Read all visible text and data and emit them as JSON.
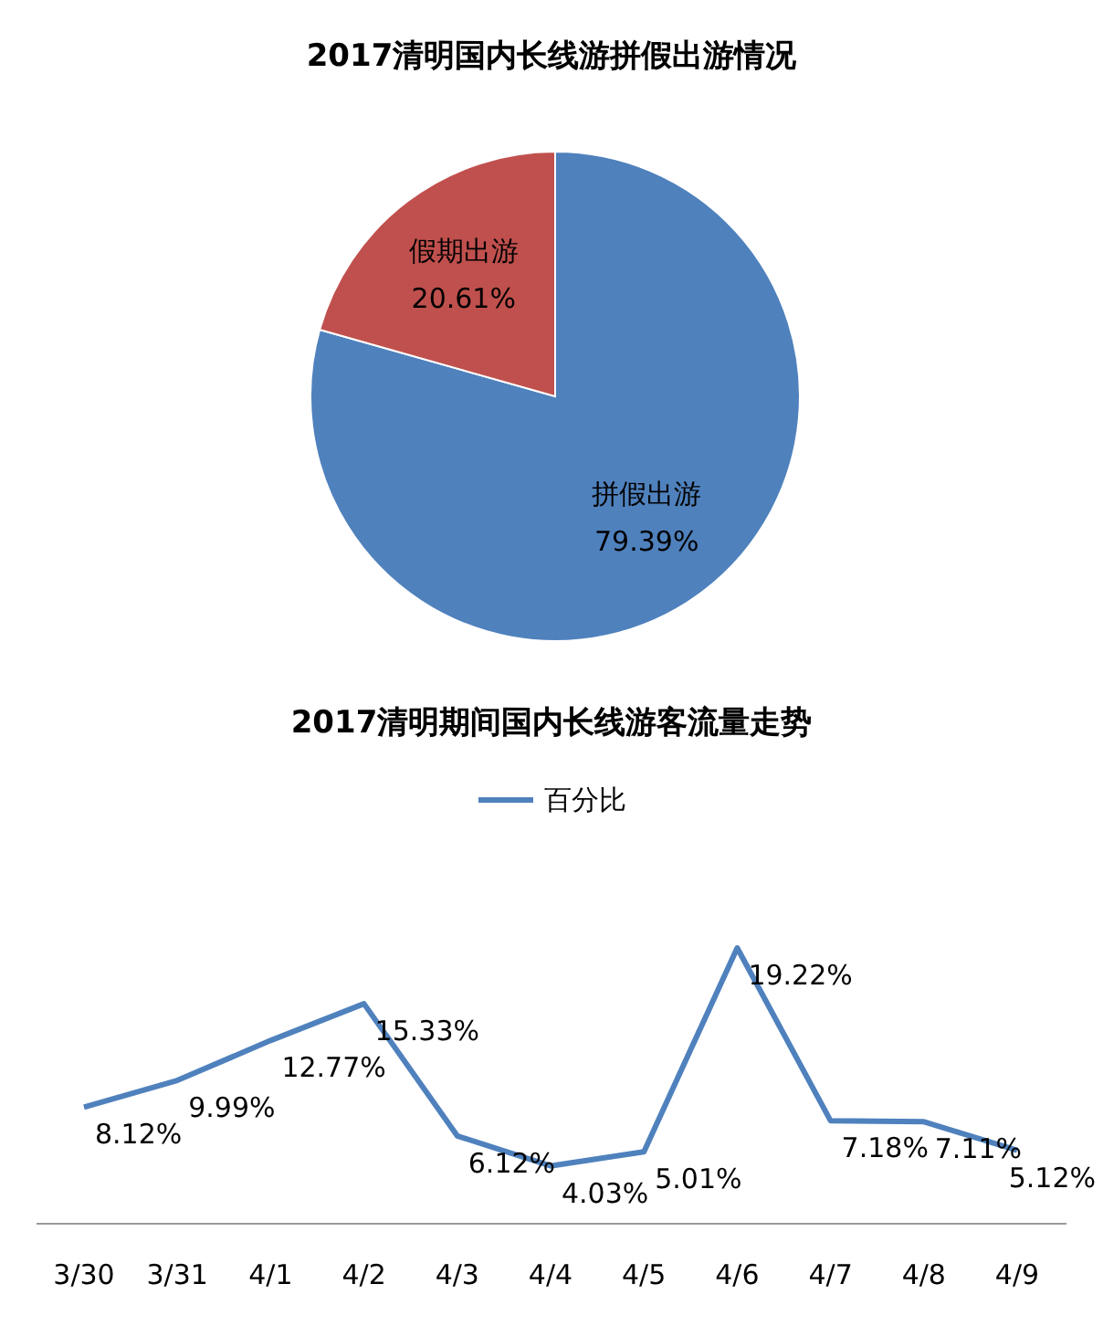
{
  "chart_data": [
    {
      "type": "pie",
      "title": "2017清明国内长线游拼假出游情况",
      "categories": [
        "拼假出游",
        "假期出游"
      ],
      "values": [
        79.39,
        20.61
      ],
      "colors": [
        "#4f81bd",
        "#c0504d"
      ],
      "value_labels": [
        "79.39%",
        "20.61%"
      ]
    },
    {
      "type": "line",
      "title": "2017清明期间国内长线游客流量走势",
      "categories": [
        "3/30",
        "3/31",
        "4/1",
        "4/2",
        "4/3",
        "4/4",
        "4/5",
        "4/6",
        "4/7",
        "4/8",
        "4/9"
      ],
      "legend": "top",
      "marker": "none",
      "series": [
        {
          "name": "百分比",
          "color": "#4f81bd",
          "values": [
            8.12,
            9.99,
            12.77,
            15.33,
            6.12,
            4.03,
            5.01,
            19.22,
            7.18,
            7.11,
            5.12
          ],
          "value_labels": [
            "8.12%",
            "9.99%",
            "12.77%",
            "15.33%",
            "6.12%",
            "4.03%",
            "5.01%",
            "19.22%",
            "7.18%",
            "7.11%",
            "5.12%"
          ]
        }
      ]
    }
  ]
}
